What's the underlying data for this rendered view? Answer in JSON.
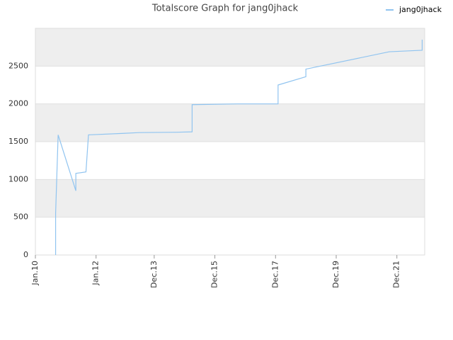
{
  "chart_data": {
    "type": "line",
    "title": "Totalscore Graph for jang0jhack",
    "x": [
      "2010-09",
      "2010-09",
      "2010-10",
      "2011-05",
      "2011-05",
      "2011-09",
      "2011-10",
      "2012-12",
      "2013-06",
      "2014-09",
      "2015-03",
      "2015-03",
      "2016-09",
      "2018-01",
      "2018-01",
      "2018-12",
      "2018-12",
      "2021-09",
      "2022-10",
      "2022-10"
    ],
    "series": [
      {
        "name": "jang0jhack",
        "color": "#90c4f0",
        "values": [
          0,
          550,
          1590,
          850,
          1080,
          1100,
          1590,
          1610,
          1620,
          1625,
          1630,
          1990,
          2000,
          2000,
          2250,
          2360,
          2460,
          2690,
          2710,
          2850
        ]
      }
    ],
    "xlim": [
      "2010-01",
      "2022-11"
    ],
    "xticks": [
      {
        "value": "2010-01",
        "label": "Jan.10"
      },
      {
        "value": "2012-01",
        "label": "Jan.12"
      },
      {
        "value": "2013-12",
        "label": "Dec.13"
      },
      {
        "value": "2015-12",
        "label": "Dec.15"
      },
      {
        "value": "2017-12",
        "label": "Dec.17"
      },
      {
        "value": "2019-12",
        "label": "Dec.19"
      },
      {
        "value": "2021-12",
        "label": "Dec.21"
      }
    ],
    "ylim": [
      0,
      3000
    ],
    "yticks": [
      0,
      500,
      1000,
      1500,
      2000,
      2500
    ],
    "grid": true,
    "legend": "top-right"
  }
}
